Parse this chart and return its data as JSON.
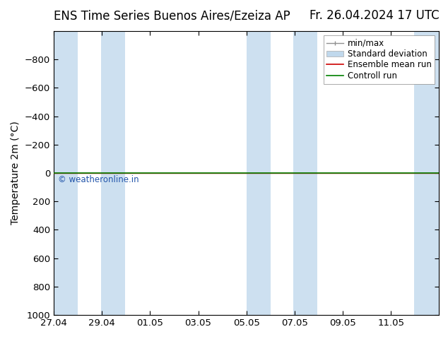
{
  "title_left": "ENS Time Series Buenos Aires/Ezeiza AP",
  "title_right": "Fr. 26.04.2024 17 UTC",
  "ylabel": "Temperature 2m (°C)",
  "watermark": "© weatheronline.in",
  "ylim_bottom": 1000,
  "ylim_top": -1000,
  "yticks": [
    -800,
    -600,
    -400,
    -200,
    0,
    200,
    400,
    600,
    800,
    1000
  ],
  "xtick_labels": [
    "27.04",
    "29.04",
    "01.05",
    "03.05",
    "05.05",
    "07.05",
    "09.05",
    "11.05"
  ],
  "xmin": 0,
  "xmax": 16,
  "shaded_bands": [
    [
      0.0,
      1.0
    ],
    [
      1.95,
      2.95
    ],
    [
      8.0,
      9.0
    ],
    [
      9.95,
      10.95
    ],
    [
      14.95,
      16.0
    ]
  ],
  "shade_color": "#cde0f0",
  "control_run_y": 0,
  "ensemble_mean_y": 0,
  "control_run_color": "#008000",
  "ensemble_mean_color": "#cc0000",
  "minmax_color": "#909090",
  "stddev_color": "#c0d8ec",
  "background_color": "#ffffff",
  "legend_entries": [
    "min/max",
    "Standard deviation",
    "Ensemble mean run",
    "Controll run"
  ],
  "xtick_positions": [
    0,
    2,
    4,
    6,
    8,
    10,
    12,
    14
  ],
  "title_fontsize": 12,
  "axis_fontsize": 10,
  "tick_fontsize": 9.5,
  "legend_fontsize": 8.5
}
